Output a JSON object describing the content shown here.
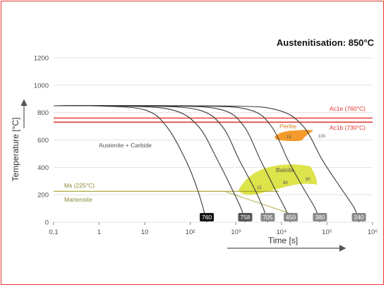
{
  "chart_data": {
    "type": "line",
    "title": "Austenitisation: 850°C",
    "xlabel": "Time [s]",
    "ylabel": "Temperature [°C]",
    "x_log": true,
    "ylim": [
      0,
      1200
    ],
    "y_ticks": [
      "0",
      "200",
      "400",
      "600",
      "800",
      "1000",
      "1200"
    ],
    "x_ticks": [
      "0,1",
      "1",
      "10",
      "10²",
      "10³",
      "10⁴",
      "10⁵",
      "10⁶"
    ],
    "x_tick_values": [
      0.1,
      1,
      10,
      100,
      1000,
      10000,
      100000,
      1000000
    ],
    "reference_lines": [
      {
        "label": "Ac1e (760°C)",
        "value": 760,
        "color": "#e2342c"
      },
      {
        "label": "Ac1b (730°C)",
        "value": 730,
        "color": "#e2342c"
      },
      {
        "label": "Ms (225°C)",
        "value": 225,
        "color": "#a6a12a"
      }
    ],
    "phase_labels": {
      "austenite_carbide": "Austenite + Carbide",
      "martensite": "Martensite",
      "perlite": "Perlite",
      "bainite": "Bainite"
    },
    "perlite_values": [
      "15",
      "100"
    ],
    "bainite_values": [
      "15",
      "88",
      "80"
    ],
    "cooling_curves": [
      {
        "hardness": "760",
        "points": [
          [
            0.1,
            850
          ],
          [
            1,
            848
          ],
          [
            10,
            820
          ],
          [
            30,
            700
          ],
          [
            80,
            450
          ],
          [
            140,
            250
          ],
          [
            200,
            80
          ],
          [
            230,
            0
          ]
        ]
      },
      {
        "hardness": "758",
        "points": [
          [
            0.1,
            850
          ],
          [
            3,
            848
          ],
          [
            40,
            820
          ],
          [
            150,
            700
          ],
          [
            400,
            450
          ],
          [
            800,
            250
          ],
          [
            1300,
            100
          ],
          [
            1600,
            0
          ]
        ]
      },
      {
        "hardness": "705",
        "points": [
          [
            0.1,
            850
          ],
          [
            10,
            848
          ],
          [
            150,
            820
          ],
          [
            500,
            700
          ],
          [
            1200,
            450
          ],
          [
            2500,
            250
          ],
          [
            4000,
            100
          ],
          [
            5000,
            0
          ]
        ]
      },
      {
        "hardness": "450",
        "points": [
          [
            0.1,
            850
          ],
          [
            40,
            848
          ],
          [
            500,
            820
          ],
          [
            1500,
            700
          ],
          [
            3500,
            450
          ],
          [
            7000,
            250
          ],
          [
            12000,
            100
          ],
          [
            16000,
            0
          ]
        ]
      },
      {
        "hardness": "380",
        "points": [
          [
            0.1,
            850
          ],
          [
            150,
            848
          ],
          [
            2000,
            820
          ],
          [
            6000,
            700
          ],
          [
            14000,
            450
          ],
          [
            30000,
            250
          ],
          [
            55000,
            100
          ],
          [
            70000,
            0
          ]
        ]
      },
      {
        "hardness": "240",
        "points": [
          [
            0.1,
            850
          ],
          [
            600,
            848
          ],
          [
            8000,
            820
          ],
          [
            30000,
            700
          ],
          [
            80000,
            450
          ],
          [
            200000,
            250
          ],
          [
            400000,
            100
          ],
          [
            500000,
            0
          ]
        ]
      }
    ],
    "hardness_badge_colors": [
      "#111111",
      "#555555",
      "#8a8a8a",
      "#8a8a8a",
      "#8a8a8a",
      "#8a8a8a"
    ],
    "colors": {
      "perlite": "#f39a2b",
      "bainite": "#dde34a",
      "frame": "#e2342c",
      "martensite": "#a6a12a"
    }
  }
}
